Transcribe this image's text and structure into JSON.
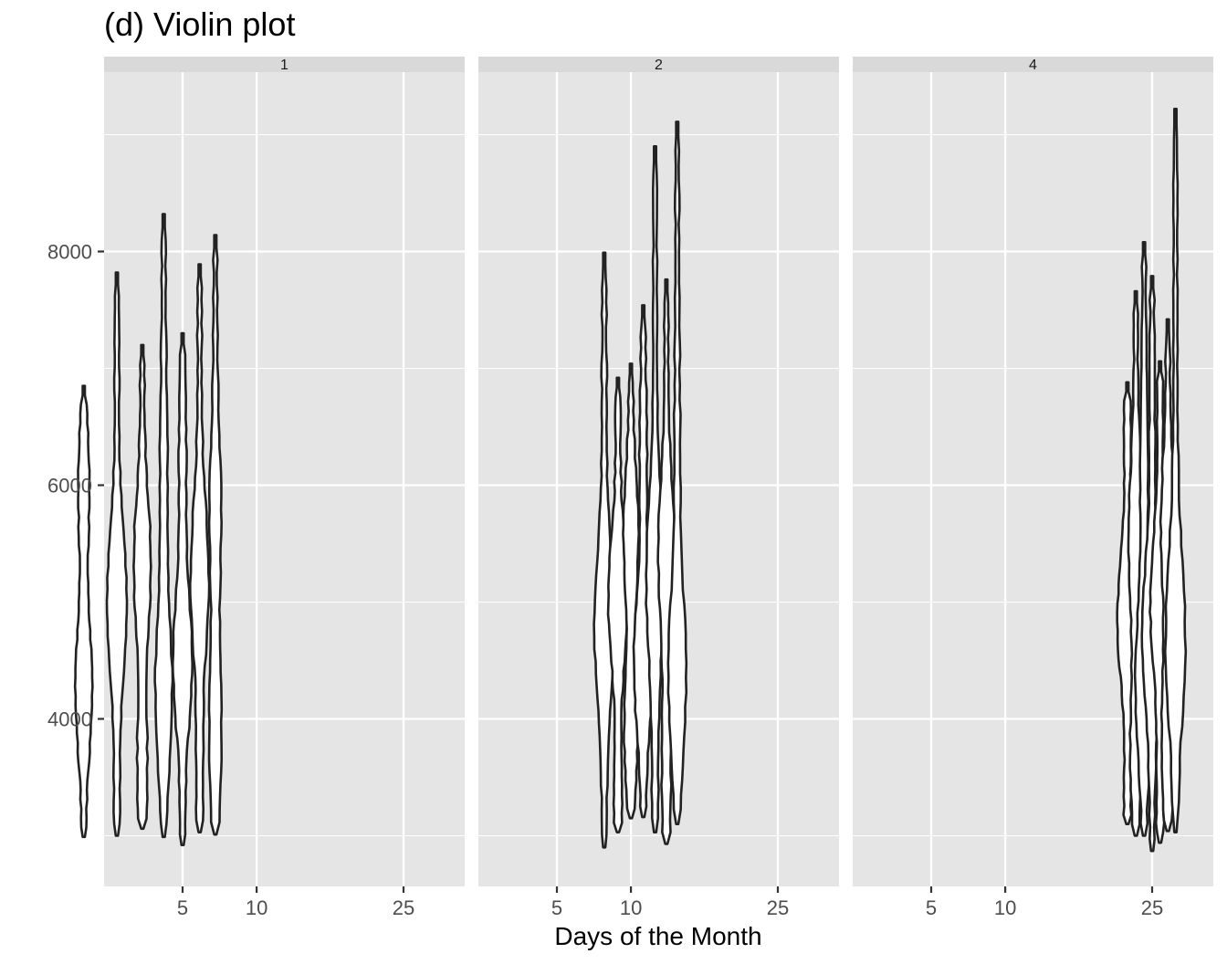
{
  "chart_data": {
    "type": "violin",
    "title": "(d) Violin plot",
    "xlabel": "Days of the Month",
    "ylabel": "",
    "x_scale": "sqrt",
    "x_ticks": [
      5,
      10,
      25
    ],
    "x_range": [
      1,
      31
    ],
    "ylim": [
      2600,
      9400
    ],
    "y_ticks": [
      4000,
      6000,
      8000
    ],
    "grid": true,
    "colors": {
      "panel": "#e5e5e5",
      "strip": "#d9d9d9",
      "grid": "#ffffff",
      "violin_outline": "#222222",
      "violin_fill": "#ffffff"
    },
    "facets": [
      {
        "label": "1",
        "violins": [
          {
            "day": 1,
            "min": 2990,
            "max": 6850
          },
          {
            "day": 2,
            "min": 3000,
            "max": 7820
          },
          {
            "day": 3,
            "min": 3060,
            "max": 7200
          },
          {
            "day": 4,
            "min": 2990,
            "max": 8320
          },
          {
            "day": 5,
            "min": 2920,
            "max": 7300
          },
          {
            "day": 6,
            "min": 3030,
            "max": 7890
          },
          {
            "day": 7,
            "min": 3010,
            "max": 8140
          }
        ]
      },
      {
        "label": "2",
        "violins": [
          {
            "day": 8,
            "min": 2900,
            "max": 7990
          },
          {
            "day": 9,
            "min": 3030,
            "max": 6920
          },
          {
            "day": 10,
            "min": 3150,
            "max": 7040
          },
          {
            "day": 11,
            "min": 3160,
            "max": 7540
          },
          {
            "day": 12,
            "min": 3030,
            "max": 8900
          },
          {
            "day": 13,
            "min": 2930,
            "max": 7760
          },
          {
            "day": 14,
            "min": 3100,
            "max": 9110
          }
        ]
      },
      {
        "label": "4",
        "violins": [
          {
            "day": 22,
            "min": 3100,
            "max": 6880
          },
          {
            "day": 23,
            "min": 3000,
            "max": 7660
          },
          {
            "day": 24,
            "min": 3000,
            "max": 8080
          },
          {
            "day": 25,
            "min": 2870,
            "max": 7790
          },
          {
            "day": 26,
            "min": 2940,
            "max": 7060
          },
          {
            "day": 27,
            "min": 3040,
            "max": 7420
          },
          {
            "day": 28,
            "min": 3030,
            "max": 9220
          }
        ]
      }
    ]
  }
}
